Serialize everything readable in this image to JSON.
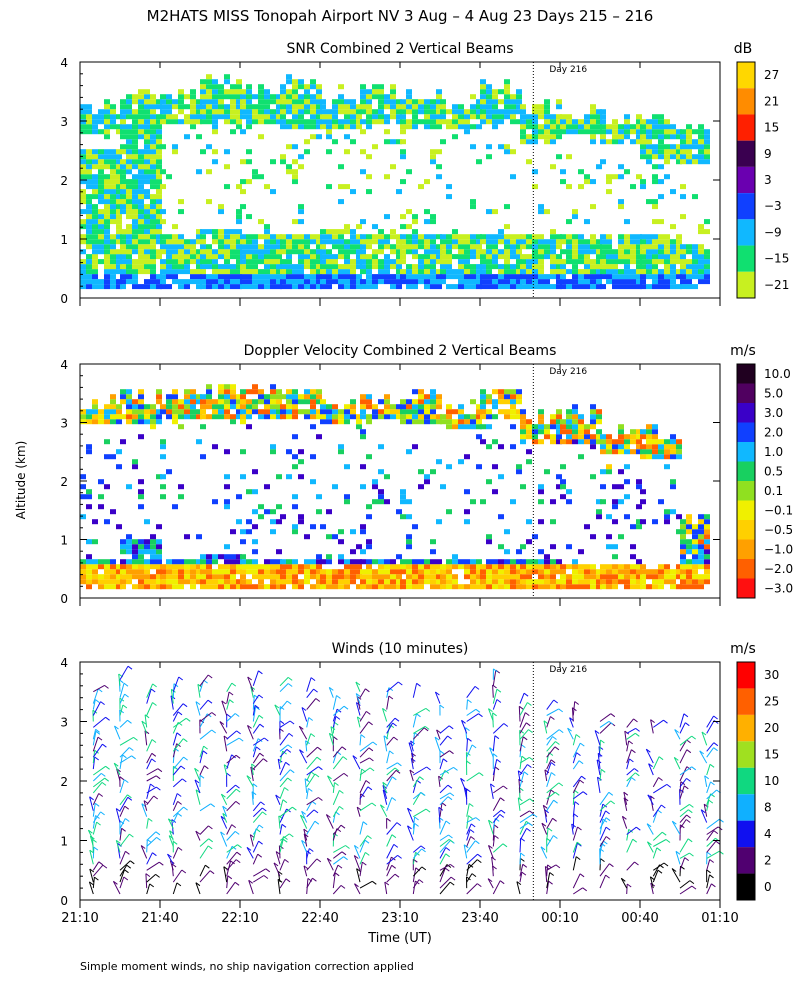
{
  "figure": {
    "title": "M2HATS MISS Tonopah Airport NV   3 Aug –  4 Aug 23 Days 215 – 216",
    "ylabel": "Altitude (km)",
    "xlabel": "Time (UT)",
    "footnote": "Simple moment winds, no ship navigation correction applied",
    "day_marker_label": "Day 216",
    "x_ticks": [
      "21:10",
      "21:40",
      "22:10",
      "22:40",
      "23:10",
      "23:40",
      "00:10",
      "00:40",
      "01:10"
    ],
    "y_ticks": [
      "0",
      "1",
      "2",
      "3",
      "4"
    ]
  },
  "chart_data": [
    {
      "type": "heatmap",
      "title": "SNR Combined 2 Vertical Beams",
      "xlabel": "",
      "ylabel": "Altitude (km)",
      "xlim": [
        "21:10",
        "01:10"
      ],
      "ylim": [
        0,
        4
      ],
      "day_boundary_time": "00:00",
      "units": "dB",
      "colorbar_labels": [
        "27",
        "21",
        "15",
        "9",
        "3",
        "−3",
        "−9",
        "−15",
        "−21"
      ],
      "colorbar_colors": [
        "#ffd700",
        "#ff8c00",
        "#ff2000",
        "#3a0050",
        "#6a00b0",
        "#1040ff",
        "#10b8ff",
        "#10e070",
        "#c8f020"
      ],
      "columns": [
        {
          "time": "21:10",
          "top_km": 3.2,
          "gap_from": 2.5,
          "gap_to": 2.7
        },
        {
          "time": "21:25",
          "top_km": 3.4,
          "gap_from": 0.0,
          "gap_to": 0.0
        },
        {
          "time": "21:40",
          "top_km": 3.4,
          "gap_from": 1.0,
          "gap_to": 2.9
        },
        {
          "time": "21:55",
          "top_km": 3.6,
          "gap_from": 1.1,
          "gap_to": 2.9
        },
        {
          "time": "22:10",
          "top_km": 3.5,
          "gap_from": 1.0,
          "gap_to": 2.9
        },
        {
          "time": "22:25",
          "top_km": 3.6,
          "gap_from": 1.0,
          "gap_to": 2.8
        },
        {
          "time": "22:40",
          "top_km": 3.4,
          "gap_from": 1.1,
          "gap_to": 2.8
        },
        {
          "time": "22:55",
          "top_km": 3.5,
          "gap_from": 1.0,
          "gap_to": 2.9
        },
        {
          "time": "23:10",
          "top_km": 3.4,
          "gap_from": 1.0,
          "gap_to": 2.8
        },
        {
          "time": "23:25",
          "top_km": 3.3,
          "gap_from": 1.0,
          "gap_to": 2.8
        },
        {
          "time": "23:40",
          "top_km": 3.6,
          "gap_from": 1.0,
          "gap_to": 2.9
        },
        {
          "time": "23:55",
          "top_km": 3.2,
          "gap_from": 1.0,
          "gap_to": 2.6
        },
        {
          "time": "00:10",
          "top_km": 3.1,
          "gap_from": 1.0,
          "gap_to": 2.7
        },
        {
          "time": "00:25",
          "top_km": 3.0,
          "gap_from": 1.0,
          "gap_to": 2.6
        },
        {
          "time": "00:40",
          "top_km": 3.0,
          "gap_from": 1.0,
          "gap_to": 2.3
        },
        {
          "time": "00:55",
          "top_km": 2.8,
          "gap_from": 0.9,
          "gap_to": 2.2
        }
      ]
    },
    {
      "type": "heatmap",
      "title": "Doppler Velocity Combined 2 Vertical Beams",
      "xlabel": "",
      "ylabel": "Altitude (km)",
      "xlim": [
        "21:10",
        "01:10"
      ],
      "ylim": [
        0,
        4
      ],
      "day_boundary_time": "00:00",
      "units": "m/s",
      "colorbar_labels": [
        "10.0",
        "5.0",
        "3.0",
        "2.0",
        "1.0",
        "0.5",
        "0.1",
        "−0.1",
        "−0.5",
        "−1.0",
        "−2.0",
        "−3.0"
      ],
      "colorbar_colors": [
        "#200020",
        "#500060",
        "#3a00c8",
        "#1040ff",
        "#10b8ff",
        "#18d060",
        "#90e020",
        "#f0f000",
        "#ffd000",
        "#ffa000",
        "#ff6000",
        "#ff1010"
      ],
      "columns": [
        {
          "time": "21:10",
          "top_km": 3.3,
          "gap_from": 0.6,
          "gap_to": 2.9
        },
        {
          "time": "21:25",
          "top_km": 3.4,
          "gap_from": 1.0,
          "gap_to": 2.9
        },
        {
          "time": "21:40",
          "top_km": 3.4,
          "gap_from": 0.6,
          "gap_to": 3.0
        },
        {
          "time": "21:55",
          "top_km": 3.5,
          "gap_from": 0.7,
          "gap_to": 3.0
        },
        {
          "time": "22:10",
          "top_km": 3.5,
          "gap_from": 0.6,
          "gap_to": 3.0
        },
        {
          "time": "22:25",
          "top_km": 3.6,
          "gap_from": 0.6,
          "gap_to": 3.0
        },
        {
          "time": "22:40",
          "top_km": 3.3,
          "gap_from": 0.6,
          "gap_to": 2.9
        },
        {
          "time": "22:55",
          "top_km": 3.4,
          "gap_from": 0.6,
          "gap_to": 3.0
        },
        {
          "time": "23:10",
          "top_km": 3.4,
          "gap_from": 0.6,
          "gap_to": 2.9
        },
        {
          "time": "23:25",
          "top_km": 3.2,
          "gap_from": 0.6,
          "gap_to": 2.8
        },
        {
          "time": "23:40",
          "top_km": 3.5,
          "gap_from": 0.6,
          "gap_to": 3.0
        },
        {
          "time": "23:55",
          "top_km": 3.1,
          "gap_from": 0.6,
          "gap_to": 2.6
        },
        {
          "time": "00:10",
          "top_km": 3.1,
          "gap_from": 0.5,
          "gap_to": 2.6
        },
        {
          "time": "00:25",
          "top_km": 2.8,
          "gap_from": 0.5,
          "gap_to": 2.4
        },
        {
          "time": "00:40",
          "top_km": 2.8,
          "gap_from": 0.5,
          "gap_to": 2.3
        },
        {
          "time": "00:55",
          "top_km": 1.3,
          "gap_from": 0.0,
          "gap_to": 0.0
        }
      ]
    },
    {
      "type": "scatter",
      "title": "Winds (10 minutes)",
      "xlabel": "Time (UT)",
      "ylabel": "Altitude (km)",
      "xlim": [
        "21:10",
        "01:10"
      ],
      "ylim": [
        0,
        4
      ],
      "day_boundary_time": "00:00",
      "units": "m/s",
      "colorbar_labels": [
        "30",
        "25",
        "20",
        "15",
        "10",
        "8",
        "4",
        "2",
        "0"
      ],
      "colorbar_colors": [
        "#ff0000",
        "#ff6000",
        "#ffb000",
        "#a0e020",
        "#10d880",
        "#10b0ff",
        "#1010f0",
        "#500070",
        "#000000"
      ],
      "profiles": [
        {
          "time": "21:15",
          "top_km": 3.6
        },
        {
          "time": "21:25",
          "top_km": 3.8
        },
        {
          "time": "21:35",
          "top_km": 3.5
        },
        {
          "time": "21:45",
          "top_km": 3.6
        },
        {
          "time": "21:55",
          "top_km": 3.7
        },
        {
          "time": "22:05",
          "top_km": 3.6
        },
        {
          "time": "22:15",
          "top_km": 3.8
        },
        {
          "time": "22:25",
          "top_km": 3.7
        },
        {
          "time": "22:35",
          "top_km": 3.6
        },
        {
          "time": "22:45",
          "top_km": 3.5
        },
        {
          "time": "22:55",
          "top_km": 3.6
        },
        {
          "time": "23:05",
          "top_km": 3.6
        },
        {
          "time": "23:15",
          "top_km": 3.5
        },
        {
          "time": "23:25",
          "top_km": 3.4
        },
        {
          "time": "23:35",
          "top_km": 3.5
        },
        {
          "time": "23:45",
          "top_km": 3.8
        },
        {
          "time": "23:55",
          "top_km": 3.4
        },
        {
          "time": "00:05",
          "top_km": 3.3
        },
        {
          "time": "00:15",
          "top_km": 3.2
        },
        {
          "time": "00:25",
          "top_km": 3.1
        },
        {
          "time": "00:35",
          "top_km": 3.1
        },
        {
          "time": "00:45",
          "top_km": 3.0
        },
        {
          "time": "00:55",
          "top_km": 3.0
        },
        {
          "time": "01:05",
          "top_km": 3.0
        }
      ]
    }
  ]
}
